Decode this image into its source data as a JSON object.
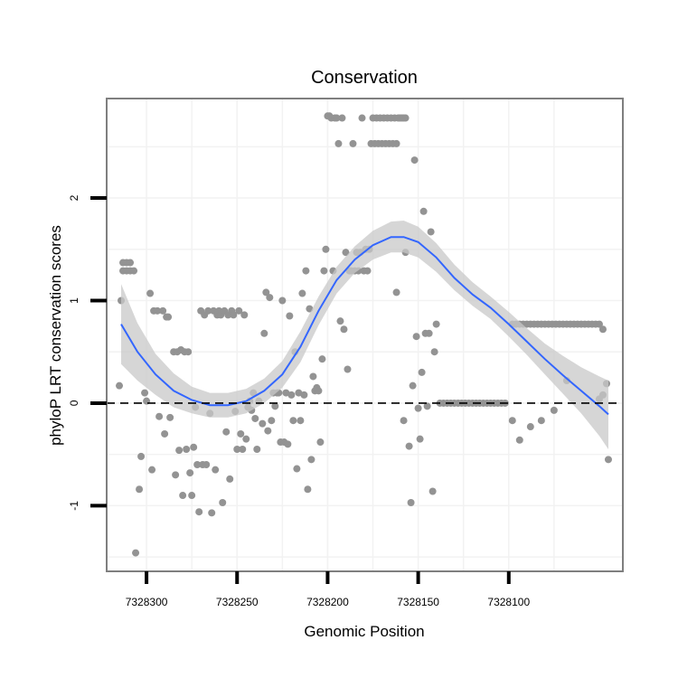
{
  "chart_data": {
    "type": "scatter",
    "title": "Conservation",
    "xlabel": "Genomic Position",
    "ylabel": "phyloP LRT conservation scores",
    "x_reversed": true,
    "xlim": [
      7328037,
      7328322
    ],
    "ylim": [
      -1.64,
      2.97
    ],
    "xticks": [
      7328300,
      7328250,
      7328200,
      7328150,
      7328100
    ],
    "yticks": [
      -1,
      0,
      1,
      2
    ],
    "reference_line": {
      "y": 0,
      "style": "dashed"
    },
    "colors": {
      "points": "#939393",
      "smooth_line": "#3366ff",
      "ribbon": "#c8c8c8",
      "panel_border": "#7f7f7f",
      "grid": "#f2f2f2"
    },
    "points": [
      {
        "x": 7328314,
        "y": 1.0
      },
      {
        "x": 7328313,
        "y": 1.37
      },
      {
        "x": 7328311,
        "y": 1.37
      },
      {
        "x": 7328309,
        "y": 1.37
      },
      {
        "x": 7328313,
        "y": 1.29
      },
      {
        "x": 7328311,
        "y": 1.29
      },
      {
        "x": 7328309,
        "y": 1.29
      },
      {
        "x": 7328307,
        "y": 1.29
      },
      {
        "x": 7328315,
        "y": 0.17
      },
      {
        "x": 7328304,
        "y": -0.84
      },
      {
        "x": 7328303,
        "y": -0.52
      },
      {
        "x": 7328306,
        "y": -1.46
      },
      {
        "x": 7328301,
        "y": 0.1
      },
      {
        "x": 7328300,
        "y": 0.02
      },
      {
        "x": 7328298,
        "y": 1.07
      },
      {
        "x": 7328297,
        "y": -0.65
      },
      {
        "x": 7328296,
        "y": 0.9
      },
      {
        "x": 7328294,
        "y": 0.9
      },
      {
        "x": 7328293,
        "y": -0.13
      },
      {
        "x": 7328291,
        "y": 0.9
      },
      {
        "x": 7328290,
        "y": -0.3
      },
      {
        "x": 7328289,
        "y": 0.84
      },
      {
        "x": 7328288,
        "y": 0.84
      },
      {
        "x": 7328287,
        "y": -0.14
      },
      {
        "x": 7328285,
        "y": 0.5
      },
      {
        "x": 7328284,
        "y": -0.7
      },
      {
        "x": 7328283,
        "y": 0.5
      },
      {
        "x": 7328282,
        "y": -0.46
      },
      {
        "x": 7328281,
        "y": 0.52
      },
      {
        "x": 7328280,
        "y": -0.9
      },
      {
        "x": 7328279,
        "y": 0.5
      },
      {
        "x": 7328278,
        "y": -0.45
      },
      {
        "x": 7328277,
        "y": 0.5
      },
      {
        "x": 7328276,
        "y": -0.68
      },
      {
        "x": 7328275,
        "y": -0.9
      },
      {
        "x": 7328274,
        "y": -0.43
      },
      {
        "x": 7328273,
        "y": -0.04
      },
      {
        "x": 7328272,
        "y": -0.6
      },
      {
        "x": 7328271,
        "y": -1.06
      },
      {
        "x": 7328270,
        "y": 0.9
      },
      {
        "x": 7328269,
        "y": -0.6
      },
      {
        "x": 7328268,
        "y": 0.86
      },
      {
        "x": 7328267,
        "y": -0.6
      },
      {
        "x": 7328266,
        "y": 0.9
      },
      {
        "x": 7328265,
        "y": -0.1
      },
      {
        "x": 7328264,
        "y": -1.07
      },
      {
        "x": 7328263,
        "y": 0.9
      },
      {
        "x": 7328262,
        "y": -0.65
      },
      {
        "x": 7328261,
        "y": 0.86
      },
      {
        "x": 7328260,
        "y": 0.9
      },
      {
        "x": 7328259,
        "y": 0.86
      },
      {
        "x": 7328258,
        "y": -0.97
      },
      {
        "x": 7328257,
        "y": 0.9
      },
      {
        "x": 7328256,
        "y": -0.28
      },
      {
        "x": 7328255,
        "y": 0.86
      },
      {
        "x": 7328254,
        "y": -0.74
      },
      {
        "x": 7328253,
        "y": 0.9
      },
      {
        "x": 7328252,
        "y": 0.86
      },
      {
        "x": 7328251,
        "y": -0.08
      },
      {
        "x": 7328250,
        "y": -0.45
      },
      {
        "x": 7328249,
        "y": 0.9
      },
      {
        "x": 7328248,
        "y": -0.3
      },
      {
        "x": 7328247,
        "y": -0.45
      },
      {
        "x": 7328246,
        "y": 0.86
      },
      {
        "x": 7328245,
        "y": -0.35
      },
      {
        "x": 7328244,
        "y": -0.04
      },
      {
        "x": 7328243,
        "y": 0.02
      },
      {
        "x": 7328242,
        "y": -0.07
      },
      {
        "x": 7328241,
        "y": 0.1
      },
      {
        "x": 7328240,
        "y": -0.15
      },
      {
        "x": 7328239,
        "y": -0.45
      },
      {
        "x": 7328238,
        "y": 0.02
      },
      {
        "x": 7328236,
        "y": -0.2
      },
      {
        "x": 7328235,
        "y": 0.68
      },
      {
        "x": 7328234,
        "y": 1.08
      },
      {
        "x": 7328233,
        "y": -0.27
      },
      {
        "x": 7328232,
        "y": 1.03
      },
      {
        "x": 7328231,
        "y": -0.17
      },
      {
        "x": 7328230,
        "y": 0.1
      },
      {
        "x": 7328229,
        "y": -0.03
      },
      {
        "x": 7328228,
        "y": 0.1
      },
      {
        "x": 7328227,
        "y": 0.1
      },
      {
        "x": 7328226,
        "y": -0.38
      },
      {
        "x": 7328225,
        "y": 1.0
      },
      {
        "x": 7328224,
        "y": -0.38
      },
      {
        "x": 7328223,
        "y": 0.1
      },
      {
        "x": 7328222,
        "y": -0.4
      },
      {
        "x": 7328221,
        "y": 0.85
      },
      {
        "x": 7328220,
        "y": 0.08
      },
      {
        "x": 7328219,
        "y": -0.17
      },
      {
        "x": 7328218,
        "y": 0.5
      },
      {
        "x": 7328217,
        "y": -0.64
      },
      {
        "x": 7328216,
        "y": 0.1
      },
      {
        "x": 7328215,
        "y": -0.17
      },
      {
        "x": 7328214,
        "y": 1.07
      },
      {
        "x": 7328213,
        "y": 0.08
      },
      {
        "x": 7328212,
        "y": 1.29
      },
      {
        "x": 7328211,
        "y": -0.84
      },
      {
        "x": 7328210,
        "y": 0.92
      },
      {
        "x": 7328209,
        "y": -0.55
      },
      {
        "x": 7328208,
        "y": 0.26
      },
      {
        "x": 7328207,
        "y": 0.12
      },
      {
        "x": 7328206,
        "y": 0.15
      },
      {
        "x": 7328205,
        "y": 0.12
      },
      {
        "x": 7328204,
        "y": -0.38
      },
      {
        "x": 7328203,
        "y": 0.43
      },
      {
        "x": 7328202,
        "y": 1.29
      },
      {
        "x": 7328201,
        "y": 1.5
      },
      {
        "x": 7328200,
        "y": 2.8
      },
      {
        "x": 7328199,
        "y": 2.8
      },
      {
        "x": 7328198,
        "y": 2.78
      },
      {
        "x": 7328197,
        "y": 1.29
      },
      {
        "x": 7328196,
        "y": 2.78
      },
      {
        "x": 7328195,
        "y": 2.78
      },
      {
        "x": 7328194,
        "y": 2.53
      },
      {
        "x": 7328193,
        "y": 0.8
      },
      {
        "x": 7328192,
        "y": 2.78
      },
      {
        "x": 7328191,
        "y": 0.72
      },
      {
        "x": 7328190,
        "y": 1.47
      },
      {
        "x": 7328189,
        "y": 0.33
      },
      {
        "x": 7328188,
        "y": 1.29
      },
      {
        "x": 7328187,
        "y": 1.29
      },
      {
        "x": 7328186,
        "y": 2.53
      },
      {
        "x": 7328185,
        "y": 1.29
      },
      {
        "x": 7328184,
        "y": 1.47
      },
      {
        "x": 7328183,
        "y": 1.29
      },
      {
        "x": 7328182,
        "y": 1.47
      },
      {
        "x": 7328181,
        "y": 2.78
      },
      {
        "x": 7328180,
        "y": 1.29
      },
      {
        "x": 7328179,
        "y": 1.5
      },
      {
        "x": 7328178,
        "y": 1.29
      },
      {
        "x": 7328177,
        "y": 1.5
      },
      {
        "x": 7328176,
        "y": 2.53
      },
      {
        "x": 7328175,
        "y": 2.78
      },
      {
        "x": 7328174,
        "y": 2.53
      },
      {
        "x": 7328173,
        "y": 2.78
      },
      {
        "x": 7328172,
        "y": 2.53
      },
      {
        "x": 7328171,
        "y": 2.78
      },
      {
        "x": 7328170,
        "y": 2.53
      },
      {
        "x": 7328169,
        "y": 2.78
      },
      {
        "x": 7328168,
        "y": 2.53
      },
      {
        "x": 7328167,
        "y": 2.78
      },
      {
        "x": 7328166,
        "y": 2.53
      },
      {
        "x": 7328165,
        "y": 2.78
      },
      {
        "x": 7328164,
        "y": 2.53
      },
      {
        "x": 7328163,
        "y": 2.78
      },
      {
        "x": 7328162,
        "y": 2.53
      },
      {
        "x": 7328161,
        "y": 2.78
      },
      {
        "x": 7328160,
        "y": 2.78
      },
      {
        "x": 7328159,
        "y": 2.78
      },
      {
        "x": 7328158,
        "y": 2.78
      },
      {
        "x": 7328157,
        "y": 2.78
      },
      {
        "x": 7328162,
        "y": 1.08
      },
      {
        "x": 7328158,
        "y": -0.17
      },
      {
        "x": 7328157,
        "y": 1.47
      },
      {
        "x": 7328155,
        "y": -0.42
      },
      {
        "x": 7328154,
        "y": -0.97
      },
      {
        "x": 7328153,
        "y": 0.17
      },
      {
        "x": 7328152,
        "y": 2.37
      },
      {
        "x": 7328151,
        "y": 0.65
      },
      {
        "x": 7328150,
        "y": -0.05
      },
      {
        "x": 7328149,
        "y": -0.35
      },
      {
        "x": 7328148,
        "y": 0.3
      },
      {
        "x": 7328147,
        "y": 1.87
      },
      {
        "x": 7328146,
        "y": 0.68
      },
      {
        "x": 7328145,
        "y": -0.03
      },
      {
        "x": 7328144,
        "y": 0.68
      },
      {
        "x": 7328143,
        "y": 1.67
      },
      {
        "x": 7328142,
        "y": -0.86
      },
      {
        "x": 7328141,
        "y": 0.5
      },
      {
        "x": 7328140,
        "y": 0.77
      },
      {
        "x": 7328138,
        "y": 0.0
      },
      {
        "x": 7328136,
        "y": 0.0
      },
      {
        "x": 7328134,
        "y": 0.0
      },
      {
        "x": 7328132,
        "y": 0.0
      },
      {
        "x": 7328130,
        "y": 0.0
      },
      {
        "x": 7328128,
        "y": 0.0
      },
      {
        "x": 7328126,
        "y": 0.0
      },
      {
        "x": 7328124,
        "y": 0.0
      },
      {
        "x": 7328122,
        "y": 0.0
      },
      {
        "x": 7328120,
        "y": 0.0
      },
      {
        "x": 7328118,
        "y": 0.0
      },
      {
        "x": 7328116,
        "y": 0.0
      },
      {
        "x": 7328114,
        "y": 0.0
      },
      {
        "x": 7328112,
        "y": 0.0
      },
      {
        "x": 7328110,
        "y": 0.0
      },
      {
        "x": 7328108,
        "y": 0.0
      },
      {
        "x": 7328106,
        "y": 0.0
      },
      {
        "x": 7328104,
        "y": 0.0
      },
      {
        "x": 7328102,
        "y": 0.0
      },
      {
        "x": 7328098,
        "y": 0.77
      },
      {
        "x": 7328096,
        "y": 0.77
      },
      {
        "x": 7328094,
        "y": 0.77
      },
      {
        "x": 7328092,
        "y": 0.77
      },
      {
        "x": 7328090,
        "y": 0.77
      },
      {
        "x": 7328088,
        "y": 0.77
      },
      {
        "x": 7328086,
        "y": 0.77
      },
      {
        "x": 7328084,
        "y": 0.77
      },
      {
        "x": 7328082,
        "y": 0.77
      },
      {
        "x": 7328080,
        "y": 0.77
      },
      {
        "x": 7328078,
        "y": 0.77
      },
      {
        "x": 7328076,
        "y": 0.77
      },
      {
        "x": 7328074,
        "y": 0.77
      },
      {
        "x": 7328072,
        "y": 0.77
      },
      {
        "x": 7328070,
        "y": 0.77
      },
      {
        "x": 7328068,
        "y": 0.77
      },
      {
        "x": 7328066,
        "y": 0.77
      },
      {
        "x": 7328064,
        "y": 0.77
      },
      {
        "x": 7328062,
        "y": 0.77
      },
      {
        "x": 7328060,
        "y": 0.77
      },
      {
        "x": 7328058,
        "y": 0.77
      },
      {
        "x": 7328056,
        "y": 0.77
      },
      {
        "x": 7328054,
        "y": 0.77
      },
      {
        "x": 7328052,
        "y": 0.77
      },
      {
        "x": 7328050,
        "y": 0.77
      },
      {
        "x": 7328048,
        "y": 0.72
      },
      {
        "x": 7328098,
        "y": -0.17
      },
      {
        "x": 7328094,
        "y": -0.36
      },
      {
        "x": 7328088,
        "y": -0.23
      },
      {
        "x": 7328082,
        "y": -0.17
      },
      {
        "x": 7328075,
        "y": -0.07
      },
      {
        "x": 7328068,
        "y": 0.22
      },
      {
        "x": 7328050,
        "y": 0.04
      },
      {
        "x": 7328048,
        "y": 0.08
      },
      {
        "x": 7328046,
        "y": 0.19
      },
      {
        "x": 7328045,
        "y": -0.55
      }
    ],
    "smooth": [
      {
        "x": 7328314,
        "y": 0.77,
        "lo": 0.38,
        "hi": 1.16
      },
      {
        "x": 7328305,
        "y": 0.5,
        "lo": 0.22,
        "hi": 0.78
      },
      {
        "x": 7328295,
        "y": 0.28,
        "lo": 0.08,
        "hi": 0.48
      },
      {
        "x": 7328285,
        "y": 0.12,
        "lo": -0.04,
        "hi": 0.29
      },
      {
        "x": 7328275,
        "y": 0.03,
        "lo": -0.1,
        "hi": 0.16
      },
      {
        "x": 7328265,
        "y": -0.02,
        "lo": -0.14,
        "hi": 0.1
      },
      {
        "x": 7328255,
        "y": -0.02,
        "lo": -0.14,
        "hi": 0.1
      },
      {
        "x": 7328245,
        "y": 0.02,
        "lo": -0.1,
        "hi": 0.14
      },
      {
        "x": 7328235,
        "y": 0.12,
        "lo": 0.0,
        "hi": 0.24
      },
      {
        "x": 7328225,
        "y": 0.28,
        "lo": 0.15,
        "hi": 0.41
      },
      {
        "x": 7328215,
        "y": 0.55,
        "lo": 0.4,
        "hi": 0.7
      },
      {
        "x": 7328205,
        "y": 0.9,
        "lo": 0.76,
        "hi": 1.04
      },
      {
        "x": 7328195,
        "y": 1.2,
        "lo": 1.07,
        "hi": 1.33
      },
      {
        "x": 7328185,
        "y": 1.4,
        "lo": 1.27,
        "hi": 1.53
      },
      {
        "x": 7328175,
        "y": 1.54,
        "lo": 1.4,
        "hi": 1.68
      },
      {
        "x": 7328165,
        "y": 1.62,
        "lo": 1.47,
        "hi": 1.77
      },
      {
        "x": 7328158,
        "y": 1.62,
        "lo": 1.47,
        "hi": 1.78
      },
      {
        "x": 7328150,
        "y": 1.57,
        "lo": 1.42,
        "hi": 1.72
      },
      {
        "x": 7328140,
        "y": 1.42,
        "lo": 1.28,
        "hi": 1.56
      },
      {
        "x": 7328130,
        "y": 1.22,
        "lo": 1.1,
        "hi": 1.35
      },
      {
        "x": 7328120,
        "y": 1.06,
        "lo": 0.95,
        "hi": 1.18
      },
      {
        "x": 7328110,
        "y": 0.93,
        "lo": 0.82,
        "hi": 1.04
      },
      {
        "x": 7328100,
        "y": 0.77,
        "lo": 0.65,
        "hi": 0.89
      },
      {
        "x": 7328090,
        "y": 0.6,
        "lo": 0.47,
        "hi": 0.73
      },
      {
        "x": 7328080,
        "y": 0.43,
        "lo": 0.28,
        "hi": 0.58
      },
      {
        "x": 7328070,
        "y": 0.27,
        "lo": 0.09,
        "hi": 0.46
      },
      {
        "x": 7328060,
        "y": 0.12,
        "lo": -0.1,
        "hi": 0.35
      },
      {
        "x": 7328050,
        "y": -0.03,
        "lo": -0.32,
        "hi": 0.26
      },
      {
        "x": 7328045,
        "y": -0.11,
        "lo": -0.45,
        "hi": 0.22
      }
    ]
  }
}
